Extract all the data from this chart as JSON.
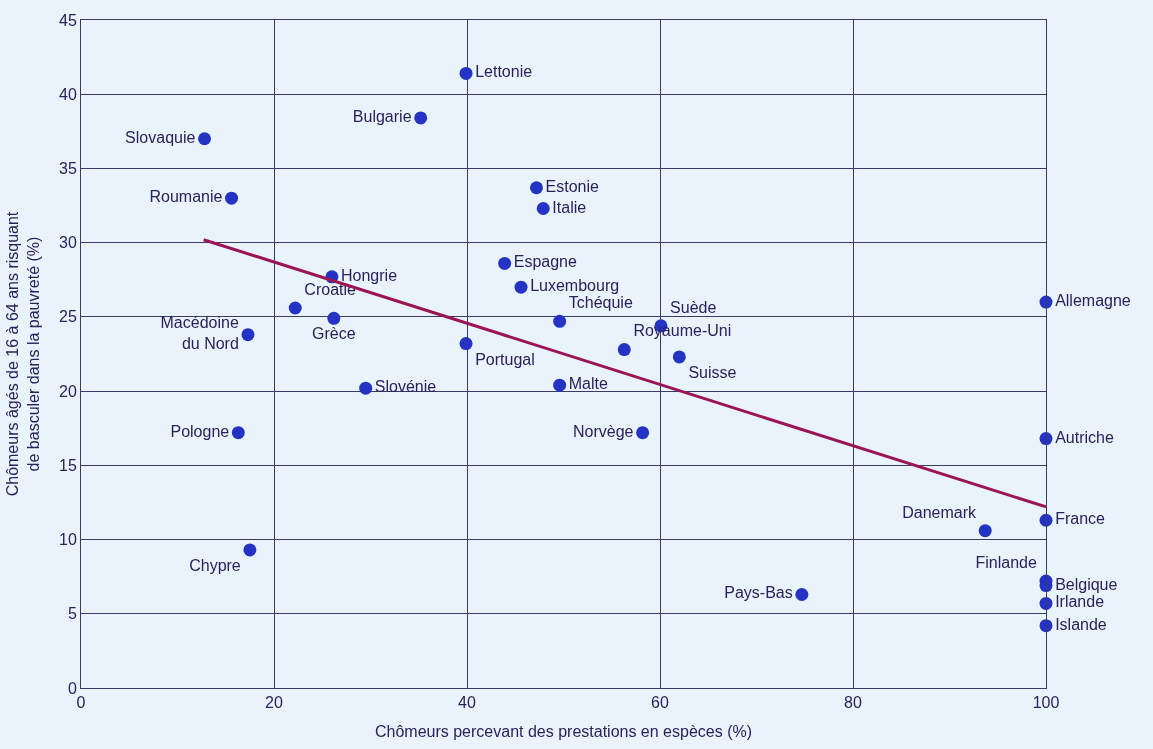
{
  "chart_data": {
    "type": "scatter",
    "xlabel": "Chômeurs percevant des prestations en espèces (%)",
    "ylabel": "Chômeurs âgés de 16 à 64 ans risquant\nde basculer dans la pauvreté (%)",
    "xlim": [
      0,
      100
    ],
    "xticks": [
      0,
      20,
      40,
      60,
      80,
      100
    ],
    "ylim": [
      0,
      45
    ],
    "yticks": [
      0,
      5,
      10,
      15,
      20,
      25,
      30,
      35,
      40,
      45
    ],
    "grid": true,
    "legend": false,
    "marker": "circle",
    "series": [
      {
        "name": "Lettonie",
        "color": "#2433c4",
        "x": [
          39.9
        ],
        "values": [
          41.4
        ]
      },
      {
        "name": "Bulgarie",
        "color": "#2433c4",
        "x": [
          35.2
        ],
        "values": [
          38.4
        ]
      },
      {
        "name": "Slovaquie",
        "color": "#2433c4",
        "x": [
          12.8
        ],
        "values": [
          37.0
        ]
      },
      {
        "name": "Roumanie",
        "color": "#2433c4",
        "x": [
          15.6
        ],
        "values": [
          33.0
        ]
      },
      {
        "name": "Estonie",
        "color": "#2433c4",
        "x": [
          47.2
        ],
        "values": [
          33.7
        ]
      },
      {
        "name": "Italie",
        "color": "#2433c4",
        "x": [
          47.9
        ],
        "values": [
          32.3
        ]
      },
      {
        "name": "Espagne",
        "color": "#2433c4",
        "x": [
          43.9
        ],
        "values": [
          28.6
        ]
      },
      {
        "name": "Luxembourg",
        "color": "#2433c4",
        "x": [
          45.6
        ],
        "values": [
          27.0
        ]
      },
      {
        "name": "Hongrie",
        "color": "#2433c4",
        "x": [
          26.0
        ],
        "values": [
          27.7
        ]
      },
      {
        "name": "Croatie",
        "color": "#2433c4",
        "x": [
          22.2
        ],
        "values": [
          25.6
        ]
      },
      {
        "name": "Grèce",
        "color": "#2433c4",
        "x": [
          26.2
        ],
        "values": [
          24.9
        ]
      },
      {
        "name": "Macédoine\ndu Nord",
        "color": "#2433c4",
        "x": [
          17.3
        ],
        "values": [
          23.8
        ]
      },
      {
        "name": "Tchéquie",
        "color": "#2433c4",
        "x": [
          49.6
        ],
        "values": [
          24.7
        ]
      },
      {
        "name": "Suède",
        "color": "#2433c4",
        "x": [
          60.1
        ],
        "values": [
          24.4
        ]
      },
      {
        "name": "Allemagne",
        "color": "#2433c4",
        "x": [
          100
        ],
        "values": [
          26.0
        ]
      },
      {
        "name": "Portugal",
        "color": "#2433c4",
        "x": [
          39.9
        ],
        "values": [
          23.2
        ]
      },
      {
        "name": "Royaume-Uni",
        "color": "#2433c4",
        "x": [
          56.3
        ],
        "values": [
          22.8
        ]
      },
      {
        "name": "Suisse",
        "color": "#2433c4",
        "x": [
          62.0
        ],
        "values": [
          22.3
        ]
      },
      {
        "name": "Slovénie",
        "color": "#2433c4",
        "x": [
          29.5
        ],
        "values": [
          20.2
        ]
      },
      {
        "name": "Malte",
        "color": "#2433c4",
        "x": [
          49.6
        ],
        "values": [
          20.4
        ]
      },
      {
        "name": "Pologne",
        "color": "#2433c4",
        "x": [
          16.3
        ],
        "values": [
          17.2
        ]
      },
      {
        "name": "Norvège",
        "color": "#2433c4",
        "x": [
          58.2
        ],
        "values": [
          17.2
        ]
      },
      {
        "name": "Autriche",
        "color": "#2433c4",
        "x": [
          100
        ],
        "values": [
          16.8
        ]
      },
      {
        "name": "France",
        "color": "#2433c4",
        "x": [
          100
        ],
        "values": [
          11.3
        ]
      },
      {
        "name": "Danemark",
        "color": "#2433c4",
        "x": [
          93.7
        ],
        "values": [
          10.6
        ]
      },
      {
        "name": "Chypre",
        "color": "#2433c4",
        "x": [
          17.5
        ],
        "values": [
          9.3
        ]
      },
      {
        "name": "Pays-Bas",
        "color": "#2433c4",
        "x": [
          74.7
        ],
        "values": [
          6.3
        ]
      },
      {
        "name": "Finlande",
        "color": "#2433c4",
        "x": [
          100
        ],
        "values": [
          7.2
        ]
      },
      {
        "name": "Belgique",
        "color": "#2433c4",
        "x": [
          100
        ],
        "values": [
          6.9
        ]
      },
      {
        "name": "Irlande",
        "color": "#2433c4",
        "x": [
          100
        ],
        "values": [
          5.7
        ]
      },
      {
        "name": "Islande",
        "color": "#2433c4",
        "x": [
          100
        ],
        "values": [
          4.2
        ]
      },
      {
        "type": "line",
        "marker": "none",
        "color": "#9b1458",
        "x": [
          12.7,
          100
        ],
        "values": [
          30.2,
          12.2
        ]
      }
    ]
  }
}
